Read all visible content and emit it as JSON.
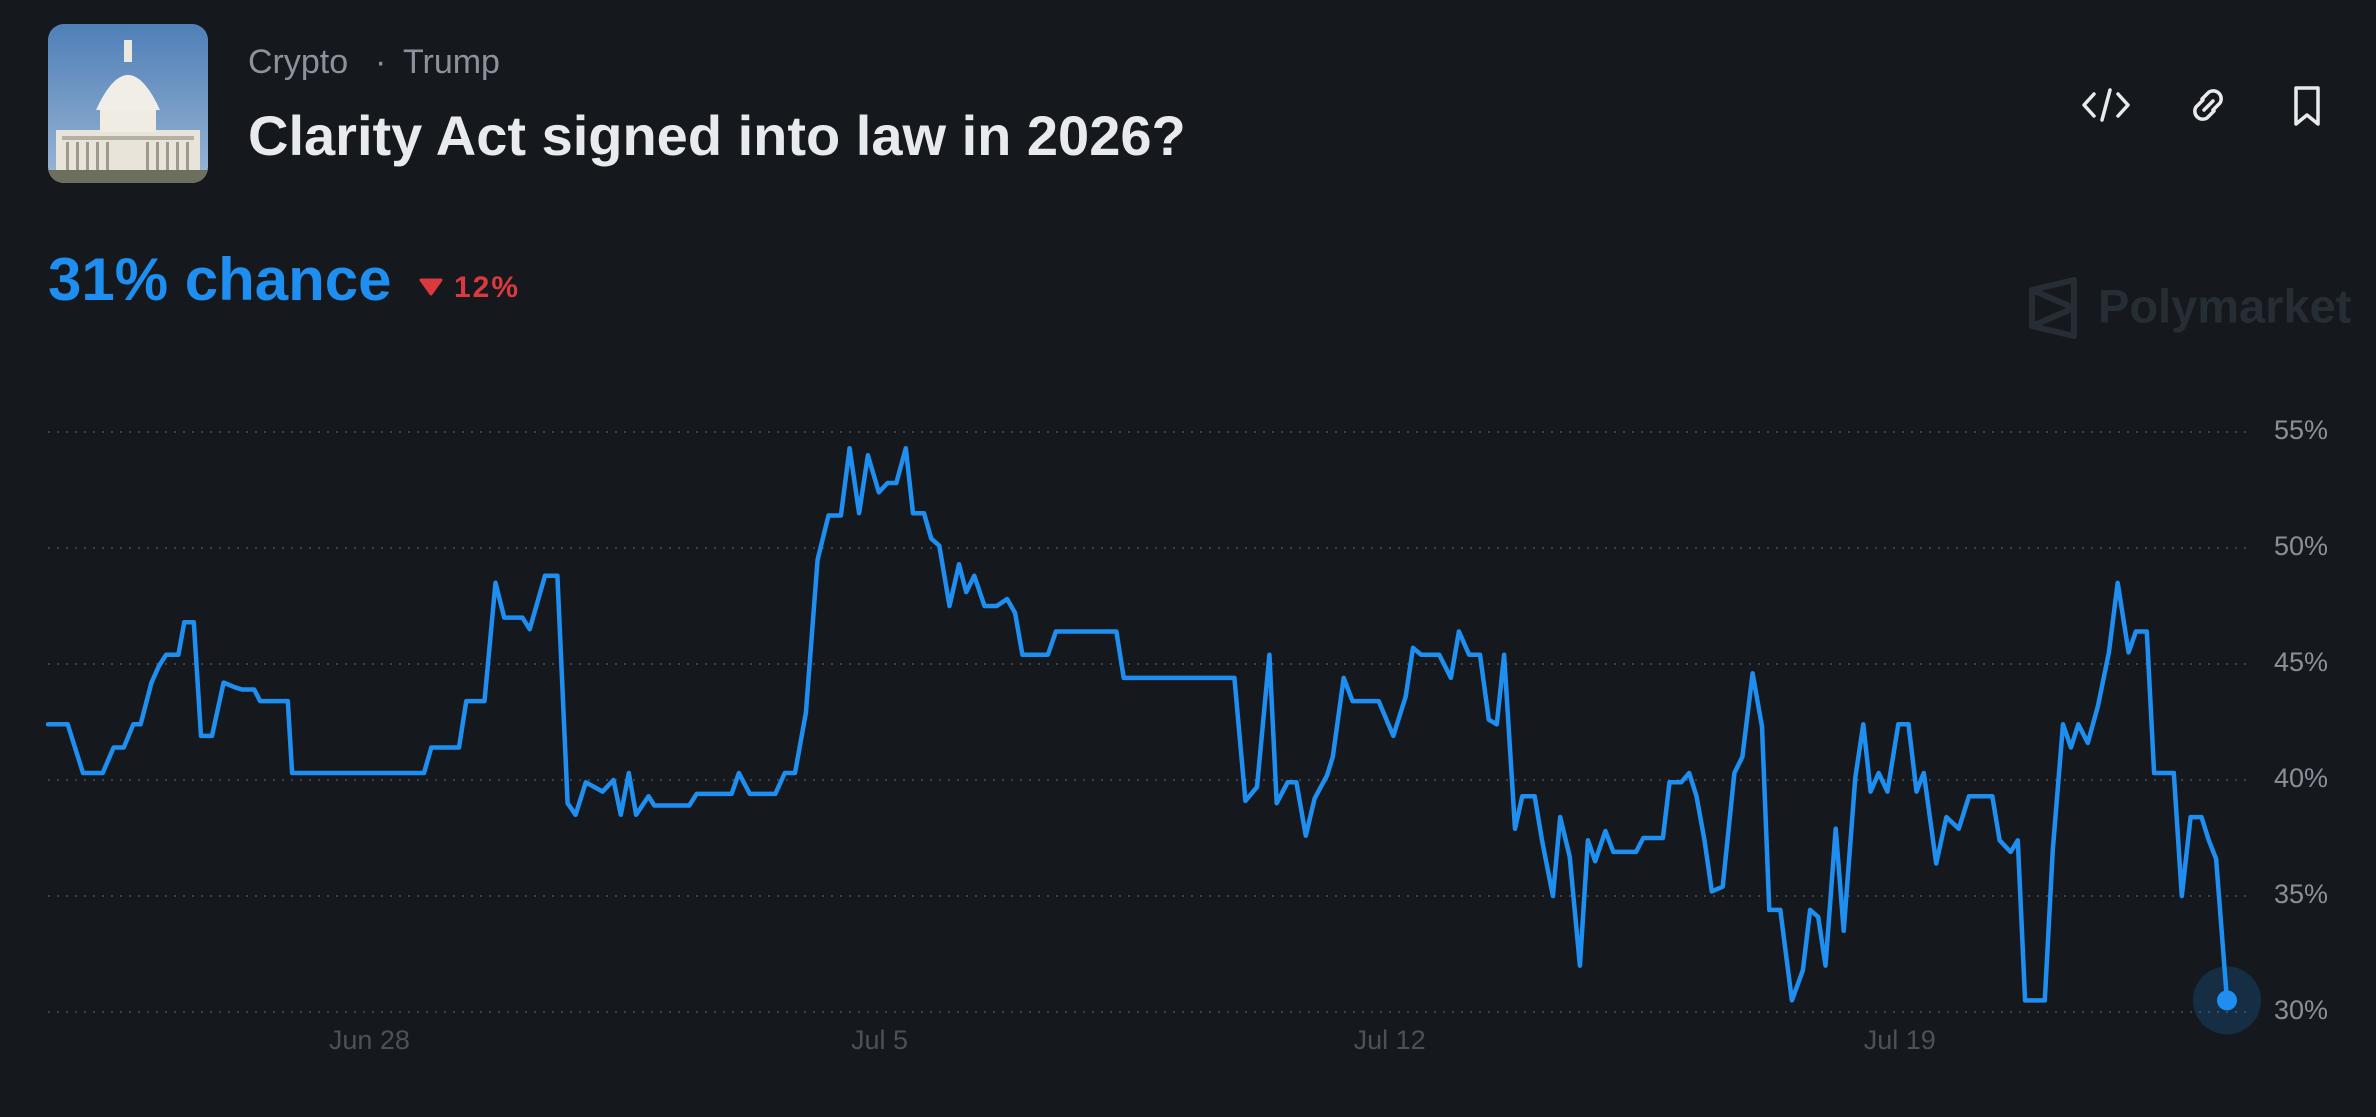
{
  "header": {
    "breadcrumbs": [
      "Crypto",
      "Trump"
    ],
    "breadcrumb_separator": "·",
    "title": "Clarity Act signed into law in 2026?"
  },
  "headline": "31% chance",
  "change": "12%",
  "brand": "Polymarket",
  "chart_data": {
    "type": "line",
    "color": "#1e8ff0",
    "grid": true,
    "x": [
      23.59,
      23.86,
      24.07,
      24.34,
      24.49,
      24.63,
      24.76,
      24.86,
      25.01,
      25.11,
      25.21,
      25.38,
      25.46,
      25.59,
      25.69,
      25.84,
      26.0,
      26.15,
      26.25,
      26.42,
      26.5,
      26.88,
      26.94,
      28.75,
      28.85,
      29.23,
      29.33,
      29.58,
      29.73,
      29.85,
      30.1,
      30.2,
      30.41,
      30.58,
      30.72,
      30.83,
      30.97,
      31.2,
      31.35,
      31.45,
      31.56,
      31.66,
      31.83,
      31.91,
      32.39,
      32.49,
      32.97,
      33.07,
      33.22,
      33.57,
      33.7,
      33.84,
      33.99,
      34.15,
      34.3,
      34.47,
      34.59,
      34.72,
      34.84,
      34.99,
      35.11,
      35.23,
      35.36,
      35.46,
      35.61,
      35.71,
      35.82,
      35.96,
      36.09,
      36.19,
      36.3,
      36.44,
      36.61,
      36.75,
      36.86,
      36.96,
      37.31,
      37.42,
      38.25,
      38.35,
      39.87,
      40.02,
      40.18,
      40.35,
      40.45,
      40.6,
      40.72,
      40.85,
      40.97,
      41.14,
      41.22,
      41.37,
      41.49,
      41.85,
      42.05,
      42.22,
      42.32,
      42.43,
      42.68,
      42.84,
      42.95,
      43.09,
      43.24,
      43.36,
      43.47,
      43.57,
      43.72,
      43.82,
      43.99,
      44.09,
      44.24,
      44.34,
      44.47,
      44.61,
      44.72,
      44.82,
      44.96,
      45.07,
      45.38,
      45.48,
      45.75,
      45.84,
      46.0,
      46.11,
      46.21,
      46.32,
      46.42,
      46.57,
      46.73,
      46.84,
      46.98,
      47.11,
      47.21,
      47.36,
      47.52,
      47.67,
      47.77,
      47.88,
      47.98,
      48.12,
      48.23,
      48.39,
      48.5,
      48.6,
      48.71,
      48.83,
      48.98,
      49.12,
      49.23,
      49.33,
      49.5,
      49.64,
      49.81,
      49.95,
      50.27,
      50.37,
      50.52,
      50.62,
      50.72,
      50.99,
      51.1,
      51.24,
      51.35,
      51.45,
      51.58,
      51.72,
      51.87,
      51.99,
      52.14,
      52.24,
      52.39,
      52.49,
      52.76,
      52.87,
      52.99,
      53.14,
      53.24,
      53.34,
      53.49
    ],
    "values": [
      42.4,
      42.4,
      40.3,
      40.3,
      41.4,
      41.4,
      42.4,
      42.4,
      44.2,
      44.9,
      45.4,
      45.4,
      46.8,
      46.8,
      41.9,
      41.9,
      44.2,
      44.0,
      43.9,
      43.9,
      43.4,
      43.4,
      40.3,
      40.3,
      41.4,
      41.4,
      43.4,
      43.4,
      48.5,
      47.0,
      47.0,
      46.5,
      48.8,
      48.8,
      39.0,
      38.5,
      39.9,
      39.5,
      40.0,
      38.5,
      40.3,
      38.5,
      39.3,
      38.9,
      38.9,
      39.4,
      39.4,
      40.3,
      39.4,
      39.4,
      40.3,
      40.3,
      42.9,
      49.5,
      51.4,
      51.4,
      54.3,
      51.5,
      54.0,
      52.4,
      52.8,
      52.8,
      54.3,
      51.5,
      51.5,
      50.4,
      50.1,
      47.5,
      49.3,
      48.1,
      48.8,
      47.5,
      47.5,
      47.8,
      47.2,
      45.4,
      45.4,
      46.4,
      46.4,
      44.4,
      44.4,
      39.1,
      39.7,
      45.4,
      39.0,
      39.9,
      39.9,
      37.6,
      39.2,
      40.2,
      41.0,
      44.4,
      43.4,
      43.4,
      41.9,
      43.6,
      45.7,
      45.4,
      45.4,
      44.4,
      46.4,
      45.4,
      45.4,
      42.6,
      42.4,
      45.4,
      37.9,
      39.3,
      39.3,
      37.4,
      35.0,
      38.4,
      36.7,
      32.0,
      37.4,
      36.5,
      37.8,
      36.9,
      36.9,
      37.5,
      37.5,
      39.9,
      39.9,
      40.3,
      39.3,
      37.4,
      35.2,
      35.4,
      40.3,
      41.0,
      44.6,
      42.3,
      34.4,
      34.4,
      30.5,
      31.8,
      34.4,
      34.1,
      32.0,
      37.9,
      33.5,
      40.1,
      42.4,
      39.5,
      40.3,
      39.5,
      42.4,
      42.4,
      39.5,
      40.3,
      36.4,
      38.4,
      37.9,
      39.3,
      39.3,
      37.4,
      36.9,
      37.4,
      30.5,
      30.5,
      37.0,
      42.4,
      41.4,
      42.4,
      41.6,
      43.2,
      45.5,
      48.5,
      45.5,
      46.4,
      46.4,
      40.3,
      40.3,
      35.0,
      38.4,
      38.4,
      37.4,
      36.6,
      30.5
    ],
    "xlim": [
      23.59,
      53.49
    ],
    "xticks": [
      {
        "value": 28,
        "label": "Jun 28"
      },
      {
        "value": 35,
        "label": "Jul 5"
      },
      {
        "value": 42,
        "label": "Jul 12"
      },
      {
        "value": 49,
        "label": "Jul 19"
      }
    ],
    "ylim": [
      30,
      55
    ],
    "yticks": [
      {
        "value": 30,
        "label": "30%"
      },
      {
        "value": 35,
        "label": "35%"
      },
      {
        "value": 40,
        "label": "40%"
      },
      {
        "value": 45,
        "label": "45%"
      },
      {
        "value": 50,
        "label": "50%"
      },
      {
        "value": 55,
        "label": "55%"
      }
    ]
  }
}
